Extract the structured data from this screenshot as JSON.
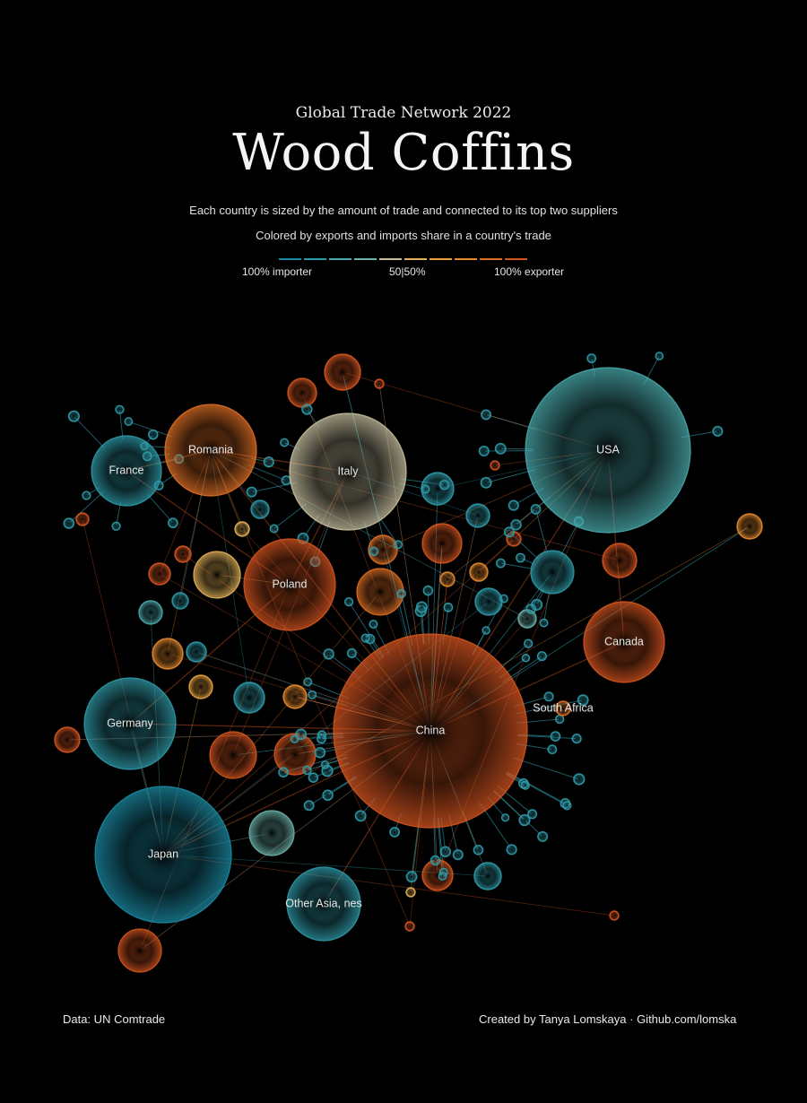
{
  "header": {
    "subtitle": "Global Trade Network 2022",
    "title": "Wood Coffins",
    "description_1": "Each country is sized by the amount of trade and connected to its top two suppliers",
    "description_2": "Colored by exports and imports share in a country's trade"
  },
  "legend": {
    "left_label": "100% importer",
    "mid_label": "50|50%",
    "right_label": "100% exporter",
    "colors": [
      "#1b8aa3",
      "#2f9aa8",
      "#4aa9ab",
      "#6db4ac",
      "#c7c0a0",
      "#e4b45a",
      "#e9a23e",
      "#e58a2f",
      "#df6f25",
      "#d55520"
    ]
  },
  "footer": {
    "source": "Data: UN Comtrade",
    "credit": "Created by Tanya Lomskaya · Github.com/lomska"
  },
  "chart_data": {
    "type": "network",
    "nodes": [
      {
        "name": "USA",
        "label": "USA",
        "export_share": 0.2
      },
      {
        "name": "China",
        "label": "China",
        "export_share": 0.95
      },
      {
        "name": "Japan",
        "label": "Japan",
        "export_share": 0.05
      },
      {
        "name": "Italy",
        "label": "Italy",
        "export_share": 0.4
      },
      {
        "name": "Romania",
        "label": "Romania",
        "export_share": 0.85
      },
      {
        "name": "Poland",
        "label": "Poland",
        "export_share": 0.95
      },
      {
        "name": "France",
        "label": "France",
        "export_share": 0.1
      },
      {
        "name": "Germany",
        "label": "Germany",
        "export_share": 0.1
      },
      {
        "name": "Canada",
        "label": "Canada",
        "export_share": 0.95
      },
      {
        "name": "Other Asia, nes",
        "label": "Other Asia, nes",
        "export_share": 0.1
      },
      {
        "name": "South Africa",
        "label": "South Africa",
        "export_share": 0.9
      }
    ],
    "edges": [
      [
        "USA",
        "China"
      ],
      [
        "USA",
        "Canada"
      ],
      [
        "Japan",
        "China"
      ],
      [
        "Italy",
        "Romania"
      ],
      [
        "Italy",
        "Poland"
      ],
      [
        "France",
        "Romania"
      ],
      [
        "France",
        "Poland"
      ],
      [
        "Germany",
        "Poland"
      ],
      [
        "Germany",
        "China"
      ],
      [
        "Other Asia, nes",
        "China"
      ],
      [
        "Canada",
        "China"
      ],
      [
        "Romania",
        "China"
      ],
      [
        "Japan",
        "Germany"
      ]
    ]
  }
}
